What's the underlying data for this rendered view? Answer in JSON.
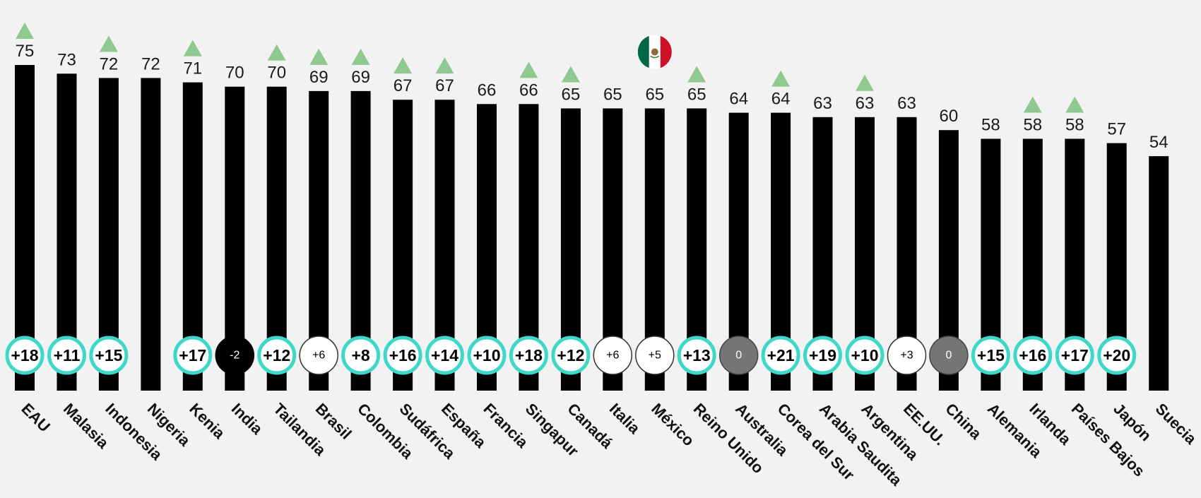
{
  "chart_data": {
    "type": "bar",
    "title": "",
    "xlabel": "",
    "ylabel": "",
    "ylim": [
      0,
      75
    ],
    "grid": false,
    "legend": "none",
    "highlight_category": "México",
    "highlight_icon": "mexico-flag-icon",
    "colors": {
      "bar": "#000000",
      "background": "#f2f2f2",
      "arrow_up": "#8fc98f",
      "ring": "#3dd8c8",
      "neutral": "#757575",
      "negative": "#000000"
    },
    "categories": [
      "EAU",
      "Malasia",
      "Indonesia",
      "Nigeria",
      "Kenia",
      "India",
      "Tailandia",
      "Brasil",
      "Colombia",
      "Sudáfrica",
      "España",
      "Francia",
      "Singapur",
      "Canadá",
      "Italia",
      "México",
      "Reino Unido",
      "Australia",
      "Corea del Sur",
      "Arabia Saudita",
      "Argentina",
      "EE.UU.",
      "China",
      "Alemania",
      "Irlanda",
      "Países Bajos",
      "Japón",
      "Suecia"
    ],
    "values": [
      75,
      73,
      72,
      72,
      71,
      70,
      70,
      69,
      69,
      67,
      67,
      66,
      66,
      65,
      65,
      65,
      65,
      64,
      64,
      63,
      63,
      63,
      60,
      58,
      58,
      58,
      57,
      54
    ],
    "value_labels": [
      "75",
      "73",
      "72",
      "72",
      "71",
      "70",
      "70",
      "69",
      "69",
      "67",
      "67",
      "66",
      "66",
      "65",
      "65",
      "65",
      "65",
      "64",
      "64",
      "63",
      "63",
      "63",
      "60",
      "58",
      "58",
      "58",
      "57",
      "54"
    ],
    "change_labels": [
      "+18",
      "+11",
      "+15",
      "",
      "+17",
      "-2",
      "+12",
      "+6",
      "+8",
      "+16",
      "+14",
      "+10",
      "+18",
      "+12",
      "+6",
      "+5",
      "+13",
      "0",
      "+21",
      "+19",
      "+10",
      "+3",
      "0",
      "+15",
      "+16",
      "+17",
      "+20",
      ""
    ],
    "change_styles": [
      "ring",
      "ring",
      "ring",
      "none",
      "ring",
      "negative",
      "ring",
      "plain",
      "ring",
      "ring",
      "ring",
      "ring",
      "ring",
      "ring",
      "plain",
      "plain",
      "ring",
      "neutral",
      "ring",
      "ring",
      "ring",
      "plain",
      "neutral",
      "ring",
      "ring",
      "ring",
      "ring",
      "none"
    ],
    "up_arrows": [
      true,
      false,
      true,
      false,
      true,
      false,
      true,
      true,
      true,
      true,
      true,
      false,
      true,
      true,
      false,
      false,
      true,
      false,
      true,
      false,
      true,
      false,
      false,
      false,
      true,
      true,
      false,
      false
    ]
  }
}
